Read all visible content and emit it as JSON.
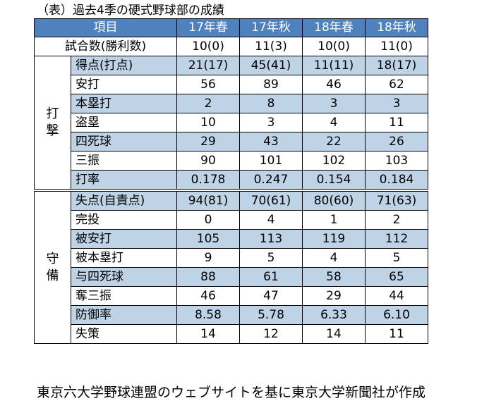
{
  "caption": "（表）過去4季の硬式野球部の成績",
  "header": {
    "item_label": "項目",
    "seasons": [
      "17年春",
      "17年秋",
      "18年春",
      "18年秋"
    ]
  },
  "games_row": {
    "label": "試合数(勝利数)",
    "values": [
      "10(0)",
      "11(3)",
      "10(0)",
      "11(0)"
    ]
  },
  "batting": {
    "group_label": "打\n撃",
    "rows": [
      {
        "label": "得点(打点)",
        "values": [
          "21(17)",
          "45(41)",
          "11(11)",
          "18(17)"
        ]
      },
      {
        "label": "安打",
        "values": [
          "56",
          "89",
          "46",
          "62"
        ]
      },
      {
        "label": "本塁打",
        "values": [
          "2",
          "8",
          "3",
          "3"
        ]
      },
      {
        "label": "盗塁",
        "values": [
          "10",
          "3",
          "4",
          "11"
        ]
      },
      {
        "label": "四死球",
        "values": [
          "29",
          "43",
          "22",
          "26"
        ]
      },
      {
        "label": "三振",
        "values": [
          "90",
          "101",
          "102",
          "103"
        ]
      },
      {
        "label": "打率",
        "values": [
          "0.178",
          "0.247",
          "0.154",
          "0.184"
        ]
      }
    ]
  },
  "defense": {
    "group_label": "守\n備",
    "rows": [
      {
        "label": "失点(自責点)",
        "values": [
          "94(81)",
          "70(61)",
          "80(60)",
          "71(63)"
        ]
      },
      {
        "label": "完投",
        "values": [
          "0",
          "4",
          "1",
          "2"
        ]
      },
      {
        "label": "被安打",
        "values": [
          "105",
          "113",
          "119",
          "112"
        ]
      },
      {
        "label": "被本塁打",
        "values": [
          "9",
          "5",
          "4",
          "5"
        ]
      },
      {
        "label": "与四死球",
        "values": [
          "88",
          "61",
          "58",
          "65"
        ]
      },
      {
        "label": "奪三振",
        "values": [
          "46",
          "47",
          "29",
          "44"
        ]
      },
      {
        "label": "防御率",
        "values": [
          "8.58",
          "5.78",
          "6.33",
          "6.10"
        ]
      },
      {
        "label": "失策",
        "values": [
          "14",
          "12",
          "14",
          "11"
        ]
      }
    ]
  },
  "footer": "東京六大学野球連盟のウェブサイトを基に東京大学新聞社が作成"
}
